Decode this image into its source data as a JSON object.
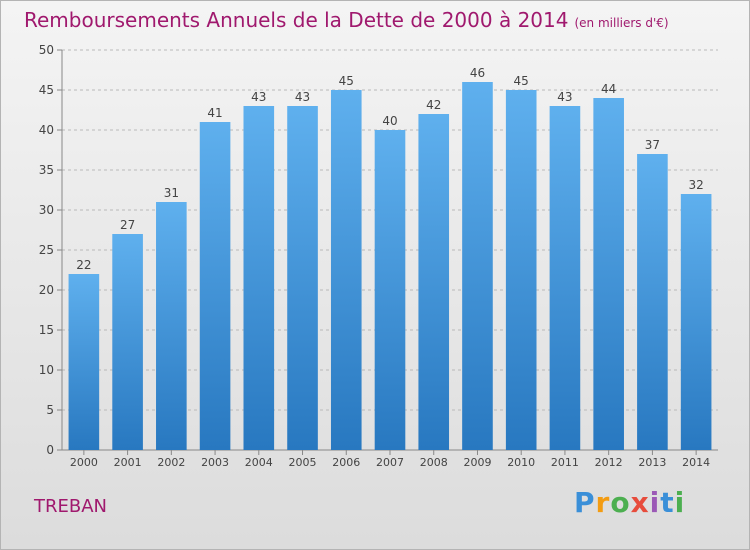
{
  "chart_data": {
    "type": "bar",
    "title": "Remboursements Annuels de la Dette de 2000 à 2014",
    "unit": "(en milliers d'€)",
    "categories": [
      "2000",
      "2001",
      "2002",
      "2003",
      "2004",
      "2005",
      "2006",
      "2007",
      "2008",
      "2009",
      "2010",
      "2011",
      "2012",
      "2013",
      "2014"
    ],
    "values": [
      22,
      27,
      31,
      41,
      43,
      43,
      45,
      40,
      42,
      46,
      45,
      43,
      44,
      37,
      32
    ],
    "ylim": [
      0,
      50
    ],
    "yticks": [
      0,
      5,
      10,
      15,
      20,
      25,
      30,
      35,
      40,
      45,
      50
    ],
    "grid": "horizontal dashed",
    "bar_color": "#3a8fd8"
  },
  "commune": "TREBAN",
  "logo": {
    "letters": [
      "P",
      "r",
      "o",
      "x",
      "i",
      "t",
      "i"
    ],
    "colors": [
      "#3a8fd8",
      "#f39c12",
      "#4caf50",
      "#e74c3c",
      "#9b59b6",
      "#3a8fd8",
      "#4caf50"
    ]
  }
}
